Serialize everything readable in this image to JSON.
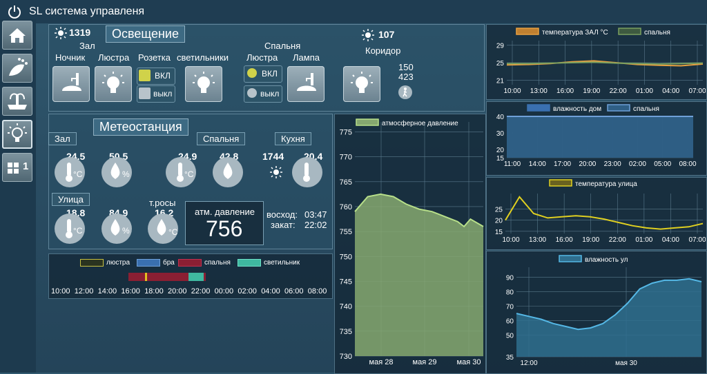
{
  "app": {
    "title": "SL система управленя",
    "icon": "power-icon"
  },
  "sidebar": {
    "items": [
      {
        "name": "home-icon"
      },
      {
        "name": "garden-watering-icon"
      },
      {
        "name": "fountain-icon"
      },
      {
        "name": "lightbulb-icon"
      },
      {
        "name": "apps-grid-icon",
        "badge": "1"
      }
    ]
  },
  "lighting": {
    "title": "Освещение",
    "lux": "1319",
    "hall": {
      "room": "Зал",
      "labels": [
        "Ночник",
        "Люстра",
        "Розетка",
        "светильники"
      ],
      "on": "ВКЛ",
      "off": "выкл"
    },
    "bedroom": {
      "room": "Спальня",
      "labels": [
        "Люстра",
        "Лампа"
      ],
      "on": "ВКЛ",
      "off": "выкл"
    },
    "corridor": {
      "room": "Коридор",
      "lux": "107",
      "v1": "150",
      "v2": "423"
    }
  },
  "meteo": {
    "title": "Метеостанция",
    "hall": {
      "room": "Зал",
      "temp": "24.5",
      "hum": "50.5"
    },
    "bedroom": {
      "room": "Спальня",
      "temp": "24.9",
      "hum": "42.8"
    },
    "kitchen": {
      "room": "Кухня",
      "lux": "1744",
      "temp": "20.4"
    },
    "street": {
      "room": "Улица",
      "temp": "18.8",
      "hum": "84.9",
      "dew_label": "т.росы",
      "dew": "16.2"
    },
    "pressure": {
      "label": "атм. давление",
      "value": "756"
    },
    "sun": {
      "rise_label": "восход:",
      "rise": "03:47",
      "set_label": "закат:",
      "set": "22:02"
    },
    "units": {
      "c": "°C",
      "pct": "%"
    }
  },
  "timeline": {
    "legend": [
      {
        "name": "люстра",
        "color": "#c8c040"
      },
      {
        "name": "бра",
        "color": "#3a70b0"
      },
      {
        "name": "спальня",
        "color": "#8a1f33"
      },
      {
        "name": "светильник",
        "color": "#3fb8a0"
      }
    ],
    "ticks": [
      "10:00",
      "12:00",
      "14:00",
      "16:00",
      "18:00",
      "20:00",
      "22:00",
      "00:00",
      "02:00",
      "04:00",
      "06:00",
      "08:00"
    ]
  },
  "chart_data": [
    {
      "type": "area",
      "legend": [
        "атмосферное давление"
      ],
      "xlabel_ticks": [
        "мая 28",
        "мая 29",
        "мая 30"
      ],
      "ylim": [
        730,
        777
      ],
      "yticks": [
        730,
        735,
        740,
        745,
        750,
        755,
        760,
        765,
        770,
        775
      ],
      "grid": true,
      "series": [
        {
          "name": "атмосферное давление",
          "x": [
            0,
            0.1,
            0.2,
            0.3,
            0.4,
            0.5,
            0.6,
            0.7,
            0.8,
            0.85,
            0.9,
            1.0
          ],
          "values": [
            759,
            762,
            762.5,
            762,
            760.5,
            759.5,
            759,
            758,
            757,
            756,
            757.5,
            756
          ]
        }
      ]
    },
    {
      "type": "line",
      "legend": [
        "температура ЗАЛ °C",
        "спальня"
      ],
      "ylim": [
        20,
        30
      ],
      "yticks": [
        21,
        25,
        29
      ],
      "xticks": [
        "10:00",
        "13:00",
        "16:00",
        "19:00",
        "22:00",
        "01:00",
        "04:00",
        "07:00"
      ],
      "series": [
        {
          "name": "температура ЗАЛ °C",
          "values": [
            24.5,
            24.6,
            24.8,
            25.2,
            25.4,
            25.0,
            24.6,
            24.4,
            24.3,
            24.7
          ]
        },
        {
          "name": "спальня",
          "values": [
            24.8,
            24.8,
            24.9,
            25.0,
            25.1,
            24.9,
            24.8,
            24.7,
            24.8,
            24.9
          ]
        }
      ]
    },
    {
      "type": "area",
      "legend": [
        "влажность дом",
        "спальня"
      ],
      "ylim": [
        15,
        40
      ],
      "yticks": [
        15,
        20,
        30,
        40
      ],
      "xticks": [
        "11:00",
        "14:00",
        "17:00",
        "20:00",
        "23:00",
        "02:00",
        "05:00",
        "08:00"
      ],
      "series": [
        {
          "name": "влажность дом",
          "values": [
            40,
            40,
            40,
            40,
            40,
            40,
            40,
            40
          ]
        },
        {
          "name": "спальня",
          "values": [
            40,
            40,
            40,
            40,
            40,
            40,
            40,
            40
          ]
        }
      ]
    },
    {
      "type": "line",
      "legend": [
        "температура улица"
      ],
      "ylim": [
        14,
        32
      ],
      "yticks": [
        15,
        20,
        25
      ],
      "xticks": [
        "10:00",
        "13:00",
        "16:00",
        "19:00",
        "22:00",
        "01:00",
        "04:00",
        "07:00"
      ],
      "series": [
        {
          "name": "температура улица",
          "values": [
            20,
            30.5,
            23,
            21,
            21.5,
            22,
            21.5,
            20.5,
            19,
            17.5,
            16.5,
            16,
            16.5,
            17,
            18.5
          ]
        }
      ]
    },
    {
      "type": "area",
      "legend": [
        "влажность ул"
      ],
      "ylim": [
        35,
        97
      ],
      "yticks": [
        35,
        50,
        60,
        70,
        80,
        90
      ],
      "xticks": [
        "12:00",
        "мая 30"
      ],
      "series": [
        {
          "name": "влажность ул",
          "values": [
            65,
            63,
            61,
            58,
            56,
            54,
            55,
            58,
            64,
            72,
            82,
            86,
            88,
            88,
            89,
            87
          ]
        }
      ]
    }
  ]
}
